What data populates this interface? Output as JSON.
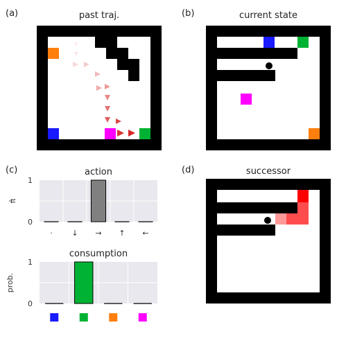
{
  "panels": {
    "a": {
      "letter": "(a)",
      "title": "past traj."
    },
    "b": {
      "letter": "(b)",
      "title": "current state"
    },
    "c": {
      "letter": "(c)"
    },
    "d": {
      "letter": "(d)",
      "title": "successor"
    }
  },
  "colors": {
    "wall": "#000000",
    "floor": "#ffffff",
    "blue": "#1a1aff",
    "green": "#00b233",
    "orange": "#ff7f0e",
    "magenta": "#ff00ff",
    "trajectory": "#d62728",
    "bar_action": "#808080",
    "bar_consumption": "#00b233",
    "chart_bg": "#e8e8ee",
    "successor_strong": "#ff0000",
    "successor_mid": "#ff4d4d",
    "successor_light": "#ff9999"
  },
  "chart_data": [
    {
      "type": "bar",
      "title": "action",
      "ylabel": "π̂",
      "categories": [
        "·",
        "↓",
        "→",
        "↑",
        "←"
      ],
      "values": [
        0,
        0,
        1,
        0,
        0
      ],
      "ylim": [
        0,
        1
      ],
      "yticks": [
        "0",
        "1"
      ],
      "grid": true
    },
    {
      "type": "bar",
      "title": "consumption",
      "ylabel": "prob.",
      "categories": [
        "blue",
        "green",
        "orange",
        "magenta"
      ],
      "category_colors": [
        "#1a1aff",
        "#00b233",
        "#ff7f0e",
        "#ff00ff"
      ],
      "values": [
        0,
        1,
        0,
        0
      ],
      "ylim": [
        0,
        1
      ],
      "yticks": [
        "0",
        "1"
      ],
      "grid": true
    }
  ]
}
